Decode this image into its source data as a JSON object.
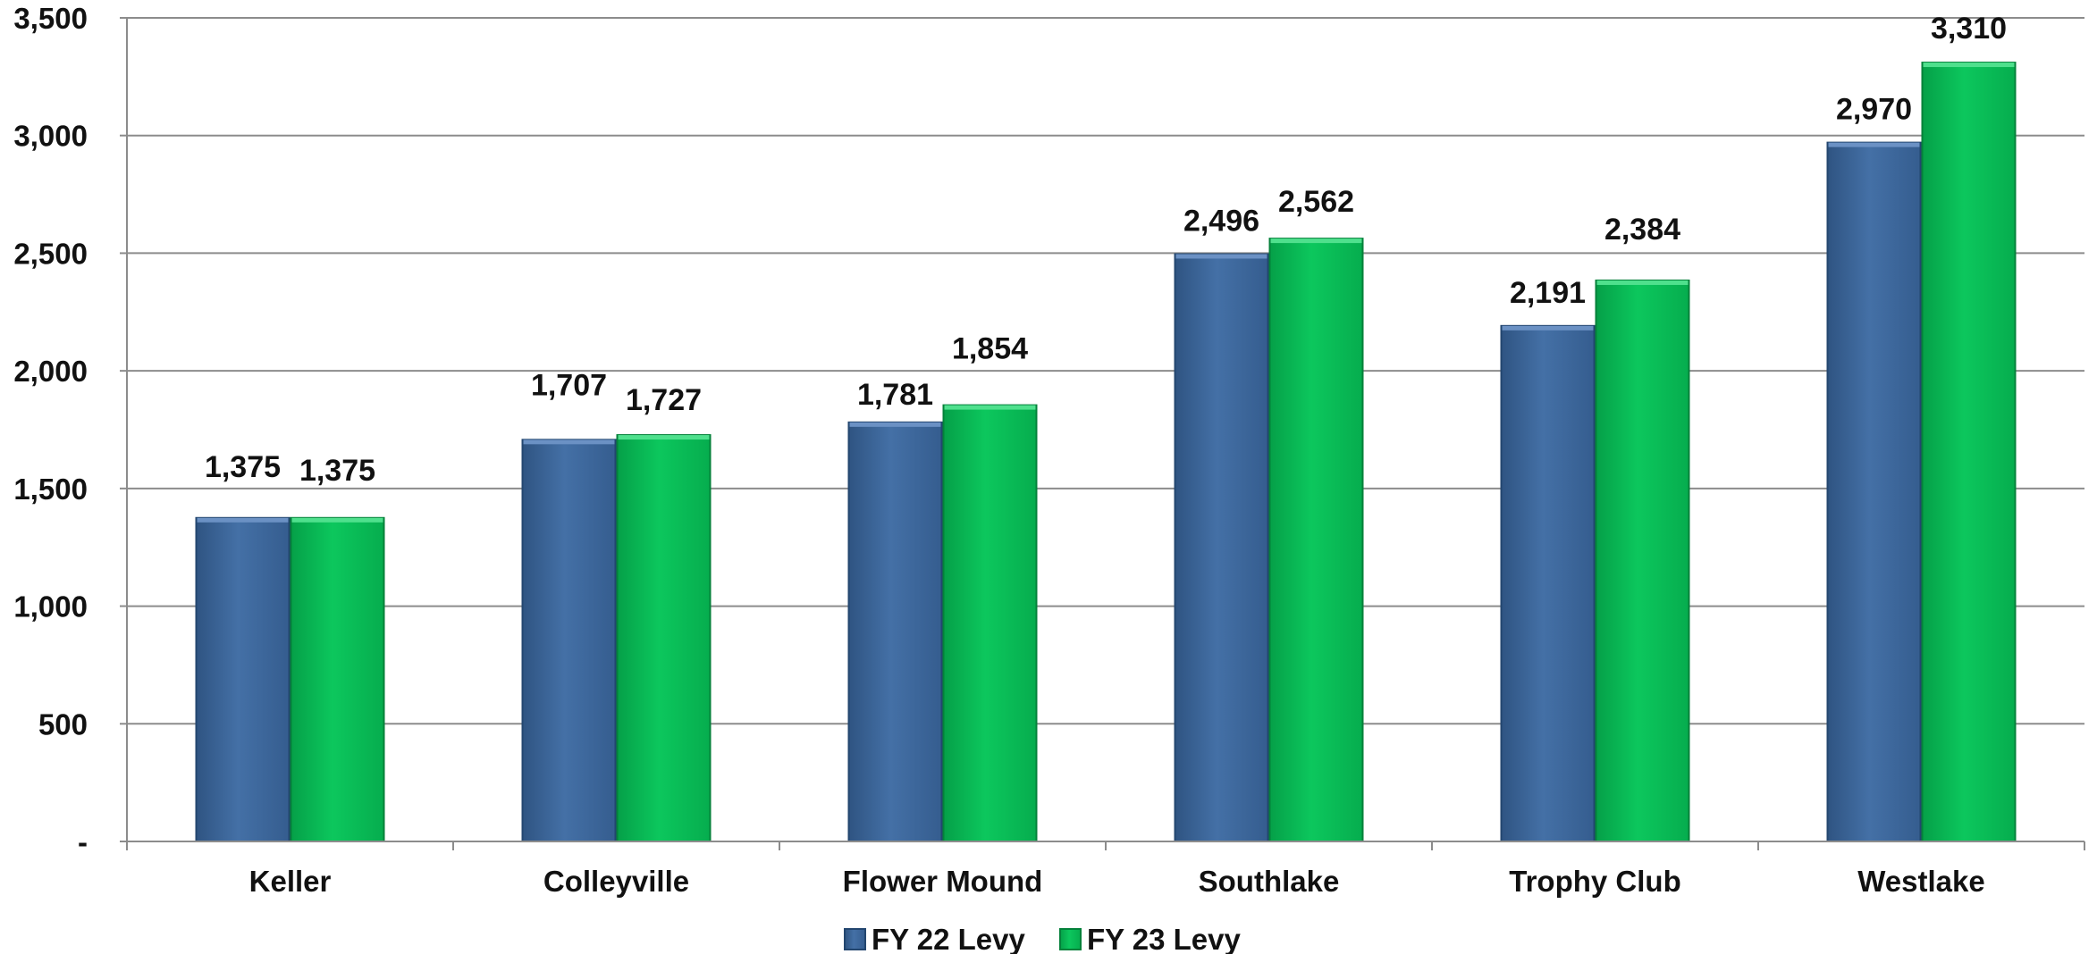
{
  "chart_data": {
    "type": "bar",
    "title": "",
    "xlabel": "",
    "ylabel": "",
    "categories": [
      "Keller",
      "Colleyville",
      "Flower Mound",
      "Southlake",
      "Trophy Club",
      "Westlake"
    ],
    "series": [
      {
        "name": "FY 22 Levy",
        "color": "#3f6699",
        "values": [
          1375,
          1707,
          1781,
          2496,
          2191,
          2970
        ]
      },
      {
        "name": "FY 23 Levy",
        "color": "#08bb55",
        "values": [
          1375,
          1727,
          1854,
          2562,
          2384,
          3310
        ]
      }
    ],
    "data_labels": [
      [
        "1,375",
        "1,707",
        "1,781",
        "2,496",
        "2,191",
        "2,970"
      ],
      [
        "1,375",
        "1,727",
        "1,854",
        "2,562",
        "2,384",
        "3,310"
      ]
    ],
    "ylim": [
      0,
      3500
    ],
    "y_ticks": [
      0,
      500,
      1000,
      1500,
      2000,
      2500,
      3000,
      3500
    ],
    "y_tick_labels": [
      "-",
      "500",
      "1,000",
      "1,500",
      "2,000",
      "2,500",
      "3,000",
      "3,500"
    ],
    "grid": true,
    "legend_position": "bottom"
  }
}
